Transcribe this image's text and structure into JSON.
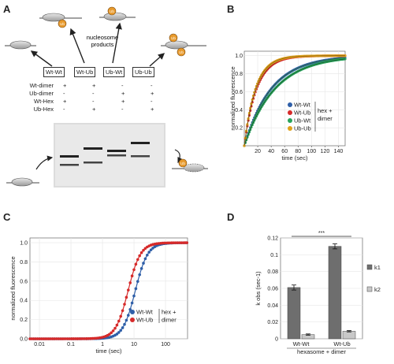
{
  "panels": {
    "a": "A",
    "b": "B",
    "c": "C",
    "d": "D"
  },
  "panel_a": {
    "ub_tag": "Ub",
    "products_label": "nucleosome\nproducts",
    "boxes": [
      "Wt-Wt",
      "Wt-Ub",
      "Ub-Wt",
      "Ub-Ub"
    ],
    "rows": [
      {
        "label": "Wt-dimer",
        "marks": [
          "+",
          "+",
          "-",
          "-"
        ]
      },
      {
        "label": "Ub-dimer",
        "marks": [
          "-",
          "-",
          "+",
          "+"
        ]
      },
      {
        "label": "Wt-Hex",
        "marks": [
          "+",
          "-",
          "+",
          "-"
        ]
      },
      {
        "label": "Ub-Hex",
        "marks": [
          "-",
          "+",
          "-",
          "+"
        ]
      }
    ]
  },
  "chart_data": [
    {
      "type": "line",
      "panel": "B",
      "xlabel": "time (sec)",
      "ylabel": "normalized fluorescence",
      "xlim": [
        0,
        150
      ],
      "ylim": [
        0,
        1.05
      ],
      "xticks": [
        20,
        40,
        60,
        80,
        100,
        120,
        140
      ],
      "yticks": [
        0.2,
        0.4,
        0.6,
        0.8,
        1.0
      ],
      "legend_bracket": "hex +\ndimer",
      "series": [
        {
          "name": "Wt-Wt",
          "color": "#2f5fa8",
          "k": 0.025,
          "fit": "#2a6f2a"
        },
        {
          "name": "Wt-Ub",
          "color": "#d62a2a",
          "k": 0.055,
          "fit": "#7a1f1f"
        },
        {
          "name": "Ub-Wt",
          "color": "#27a35a",
          "k": 0.022,
          "fit": "#1d5a30"
        },
        {
          "name": "Ub-Ub",
          "color": "#e0a21b",
          "k": 0.06,
          "fit": "#8a5f10"
        }
      ]
    },
    {
      "type": "line",
      "panel": "C",
      "xlabel": "time (sec)",
      "ylabel": "normalized fluorescence",
      "xscale": "log",
      "xlim": [
        0.005,
        500
      ],
      "ylim": [
        0,
        1.05
      ],
      "xticks": [
        0.01,
        0.1,
        1,
        10,
        100
      ],
      "xtick_labels": [
        "0.01",
        "0.1",
        "1",
        "10",
        "100"
      ],
      "yticks": [
        0,
        0.2,
        0.4,
        0.6,
        0.8,
        1.0
      ],
      "ytick_labels": [
        "0.0",
        "0.2",
        "0.4",
        "0.6",
        "0.8",
        "1.0"
      ],
      "legend_bracket": "hex +\ndimer",
      "series": [
        {
          "name": "Wt-Wt",
          "color": "#2f5fa8",
          "half": 11
        },
        {
          "name": "Wt-Ub",
          "color": "#d62a2a",
          "half": 6.5
        }
      ]
    },
    {
      "type": "bar",
      "panel": "D",
      "categories": [
        "Wt-Wt",
        "Wt-Ub"
      ],
      "xlabel": "hexasome + dimer",
      "ylabel": "k obs (sec-1)",
      "ylim": [
        0,
        0.12
      ],
      "yticks": [
        0,
        0.02,
        0.04,
        0.06,
        0.08,
        0.1,
        0.12
      ],
      "significance": "***",
      "series": [
        {
          "name": "k1",
          "color": "#6e6e6e",
          "values": [
            0.061,
            0.11
          ],
          "errors": [
            0.003,
            0.003
          ]
        },
        {
          "name": "k2",
          "color": "#c8c8c8",
          "values": [
            0.005,
            0.009
          ],
          "errors": [
            0.0008,
            0.0008
          ]
        }
      ]
    }
  ]
}
